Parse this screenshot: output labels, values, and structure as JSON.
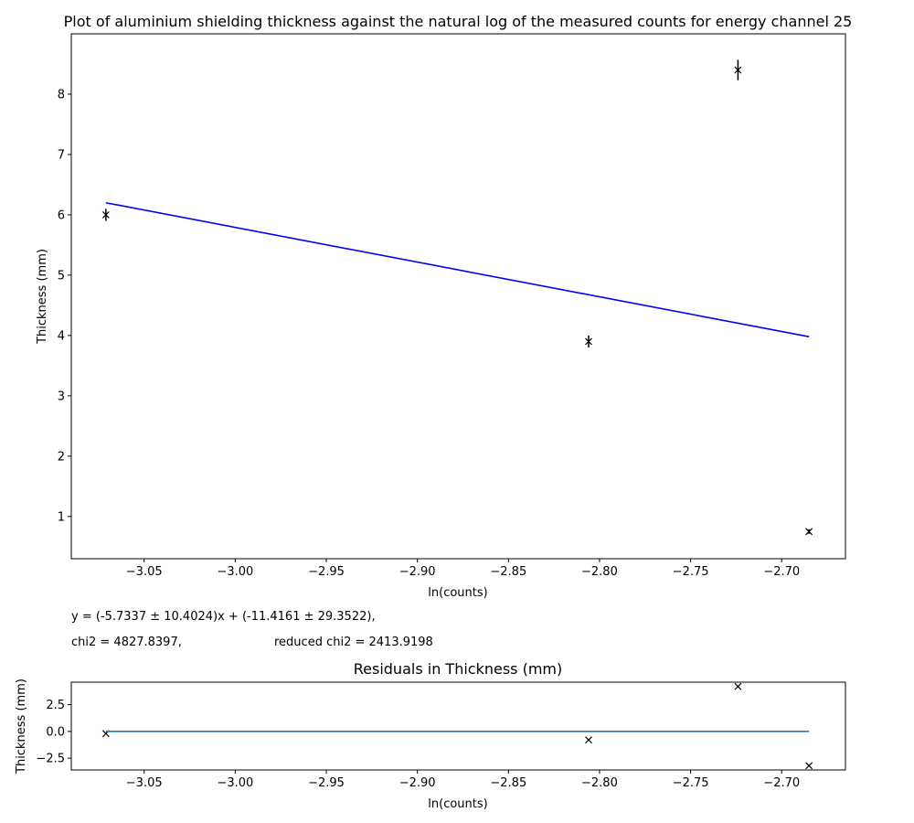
{
  "chart_data": [
    {
      "type": "scatter",
      "title": "Plot of aluminium shielding thickness against the natural log of the measured counts for energy channel 25",
      "xlabel": "ln(counts)",
      "ylabel": "Thickness (mm)",
      "xlim": [
        -3.09,
        -2.665
      ],
      "ylim": [
        0.3,
        9.0
      ],
      "xticks": [
        -3.05,
        -3.0,
        -2.95,
        -2.9,
        -2.85,
        -2.8,
        -2.75,
        -2.7
      ],
      "xtick_labels": [
        "−3.05",
        "−3.00",
        "−2.95",
        "−2.90",
        "−2.85",
        "−2.80",
        "−2.75",
        "−2.70"
      ],
      "yticks": [
        1,
        2,
        3,
        4,
        5,
        6,
        7,
        8
      ],
      "ytick_labels": [
        "1",
        "2",
        "3",
        "4",
        "5",
        "6",
        "7",
        "8"
      ],
      "grid": false,
      "series": [
        {
          "kind": "errorbar",
          "marker": "x",
          "color": "#000000",
          "x": [
            -3.071,
            -2.806,
            -2.724,
            -2.685
          ],
          "y": [
            6.0,
            3.9,
            8.4,
            0.75
          ],
          "yerr": [
            0.1,
            0.1,
            0.17,
            0.04
          ]
        },
        {
          "kind": "line",
          "color": "#0000ff",
          "x": [
            -3.071,
            -2.685
          ],
          "y": [
            6.2,
            3.98
          ]
        }
      ],
      "annotations": {
        "equation": "y = (-5.7337 ± 10.4024)x + (-11.4161 ± 29.3522),",
        "chi2": "chi2 = 4827.8397,",
        "reduced_chi2": "reduced chi2 = 2413.9198"
      }
    },
    {
      "type": "scatter",
      "title": "Residuals in Thickness (mm)",
      "xlabel": "ln(counts)",
      "ylabel": "Thickness (mm)",
      "xlim": [
        -3.09,
        -2.665
      ],
      "ylim": [
        -3.6,
        4.6
      ],
      "xticks": [
        -3.05,
        -3.0,
        -2.95,
        -2.9,
        -2.85,
        -2.8,
        -2.75,
        -2.7
      ],
      "xtick_labels": [
        "−3.05",
        "−3.00",
        "−2.95",
        "−2.90",
        "−2.85",
        "−2.80",
        "−2.75",
        "−2.70"
      ],
      "yticks": [
        2.5,
        0.0,
        -2.5
      ],
      "ytick_labels": [
        "2.5",
        "0.0",
        "−2.5"
      ],
      "grid": false,
      "series": [
        {
          "kind": "points",
          "marker": "x",
          "color": "#000000",
          "x": [
            -3.071,
            -2.806,
            -2.724,
            -2.685
          ],
          "y": [
            -0.2,
            -0.8,
            4.2,
            -3.2
          ]
        },
        {
          "kind": "line",
          "color": "#1f77b4",
          "x": [
            -3.071,
            -2.685
          ],
          "y": [
            0.0,
            0.0
          ]
        }
      ]
    }
  ]
}
